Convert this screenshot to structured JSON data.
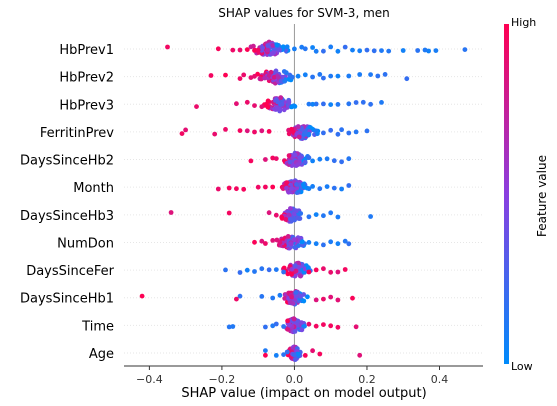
{
  "chart_data": {
    "type": "scatter",
    "title": "SHAP values for SVM-3, men",
    "xlabel": "SHAP value (impact on model output)",
    "xlim": [
      -0.47,
      0.52
    ],
    "xticks": [
      -0.4,
      -0.2,
      0.0,
      0.2,
      0.4
    ],
    "xtick_labels": [
      "−0.4",
      "−0.2",
      "0.0",
      "0.2",
      "0.4"
    ],
    "colorbar": {
      "title": "Feature value",
      "high_label": "High",
      "low_label": "Low",
      "high_color": "#ff0052",
      "low_color": "#008bfb",
      "mid_color": "#8a3fe0"
    },
    "features": [
      {
        "name": "HbPrev1",
        "low_values": [
          0.47,
          0.39,
          0.37,
          0.36,
          0.34,
          0.3,
          0.26,
          0.24,
          0.22,
          0.2,
          0.18,
          0.16,
          0.14,
          0.12,
          0.1,
          0.08,
          0.06,
          0.05,
          0.03,
          0.02,
          0.0,
          -0.02
        ],
        "high_values": [
          -0.35,
          -0.21,
          -0.17,
          -0.15,
          -0.13,
          -0.11,
          -0.1
        ],
        "cluster_center": -0.07,
        "cluster_width": 0.12
      },
      {
        "name": "HbPrev2",
        "low_values": [
          0.31,
          0.25,
          0.23,
          0.21,
          0.18,
          0.15,
          0.12,
          0.1,
          0.08,
          0.07,
          0.05,
          0.03,
          0.01
        ],
        "high_values": [
          -0.23,
          -0.19,
          -0.15,
          -0.14,
          -0.12,
          -0.11
        ],
        "cluster_center": -0.05,
        "cluster_width": 0.12
      },
      {
        "name": "HbPrev3",
        "low_values": [
          0.24,
          0.21,
          0.19,
          0.17,
          0.15,
          0.12,
          0.1,
          0.08,
          0.06,
          0.05,
          0.04
        ],
        "high_values": [
          -0.27,
          -0.16,
          -0.13,
          -0.11,
          -0.09
        ],
        "cluster_center": -0.04,
        "cluster_width": 0.1
      },
      {
        "name": "FerritinPrev",
        "low_values": [
          0.2,
          0.17,
          0.15,
          0.13,
          0.12,
          0.1,
          0.08,
          0.06,
          0.04,
          0.03
        ],
        "high_values": [
          -0.31,
          -0.3,
          -0.22,
          -0.19,
          -0.15,
          -0.13,
          -0.11,
          -0.09,
          -0.07
        ],
        "cluster_center": 0.02,
        "cluster_width": 0.1
      },
      {
        "name": "DaysSinceHb2",
        "low_values": [
          0.15,
          0.13,
          0.11,
          0.09,
          0.07,
          0.05,
          0.04
        ],
        "high_values": [
          -0.12,
          -0.08,
          -0.06,
          -0.05
        ],
        "cluster_center": 0.0,
        "cluster_width": 0.1
      },
      {
        "name": "Month",
        "low_values": [
          0.15,
          0.13,
          0.11,
          0.09,
          0.07,
          0.05,
          0.04
        ],
        "high_values": [
          -0.21,
          -0.18,
          -0.16,
          -0.14,
          -0.1,
          -0.08,
          -0.06
        ],
        "cluster_center": 0.0,
        "cluster_width": 0.09
      },
      {
        "name": "DaysSinceHb3",
        "low_values": [
          0.21,
          0.12,
          0.1,
          0.08,
          0.06,
          0.04
        ],
        "high_values": [
          -0.34,
          -0.18,
          -0.07,
          -0.05
        ],
        "cluster_center": -0.01,
        "cluster_width": 0.08
      },
      {
        "name": "NumDon",
        "low_values": [
          0.15,
          0.14,
          0.12,
          0.1,
          0.08,
          0.06,
          0.04
        ],
        "high_values": [
          -0.11,
          -0.09,
          -0.08,
          -0.06,
          -0.04
        ],
        "cluster_center": -0.01,
        "cluster_width": 0.1
      },
      {
        "name": "DaysSinceFer",
        "low_values": [
          -0.19,
          -0.15,
          -0.13,
          -0.11,
          -0.09,
          -0.07,
          -0.05,
          -0.03
        ],
        "high_values": [
          0.14,
          0.12,
          0.1,
          0.08,
          0.06,
          0.04
        ],
        "cluster_center": 0.01,
        "cluster_width": 0.1
      },
      {
        "name": "DaysSinceHb1",
        "low_values": [
          -0.15,
          -0.09,
          -0.06,
          -0.04
        ],
        "high_values": [
          -0.42,
          -0.16,
          0.16,
          0.12,
          0.1,
          0.08,
          0.06
        ],
        "cluster_center": 0.0,
        "cluster_width": 0.08
      },
      {
        "name": "Time",
        "low_values": [
          -0.18,
          -0.17,
          -0.08,
          -0.06,
          -0.05,
          -0.03
        ],
        "high_values": [
          0.17,
          0.12,
          0.1,
          0.08,
          0.06,
          0.04
        ],
        "cluster_center": 0.0,
        "cluster_width": 0.08
      },
      {
        "name": "Age",
        "low_values": [
          -0.08,
          -0.05,
          -0.03,
          -0.02
        ],
        "high_values": [
          -0.08,
          0.18,
          0.07,
          0.05,
          0.03
        ],
        "cluster_center": 0.0,
        "cluster_width": 0.05
      }
    ]
  }
}
